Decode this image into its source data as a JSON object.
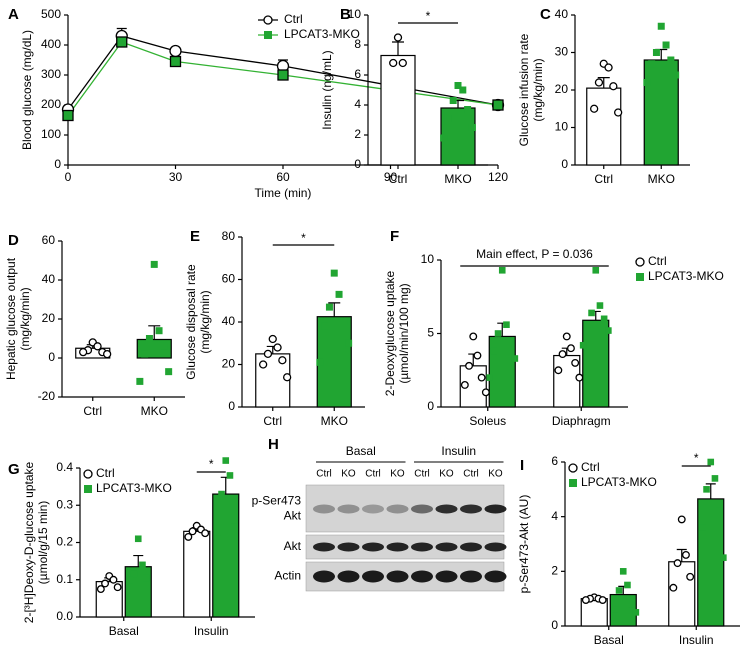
{
  "chart_data": [
    {
      "type": "line",
      "label": "A",
      "ylabel": "Blood glucose (mg/dL)",
      "xlabel": "Time (min)",
      "x": [
        0,
        15,
        30,
        60,
        120
      ],
      "xlim": [
        0,
        120
      ],
      "xticks": [
        0,
        30,
        60,
        90,
        120
      ],
      "ylim": [
        0,
        500
      ],
      "yticks": [
        0,
        100,
        200,
        300,
        400,
        500
      ],
      "legend": "upper right",
      "series": [
        {
          "name": "Ctrl",
          "color": "#000000",
          "fill": "#ffffff",
          "marker": "circle",
          "values": [
            185,
            430,
            380,
            330,
            200
          ],
          "errors": [
            10,
            25,
            10,
            20,
            8
          ]
        },
        {
          "name": "LPCAT3-MKO",
          "color": "#33b233",
          "fill": "#21a532",
          "marker": "square",
          "values": [
            165,
            410,
            345,
            300,
            200
          ],
          "errors": [
            10,
            15,
            10,
            15,
            8
          ]
        }
      ]
    },
    {
      "type": "bar",
      "label": "B",
      "ylabel": "Insulin (ng/mL)",
      "categories": [
        "Ctrl",
        "MKO"
      ],
      "values": [
        7.3,
        3.8
      ],
      "errors": [
        0.9,
        0.5
      ],
      "colors": [
        "#ffffff",
        "#21a532"
      ],
      "markers": [
        "circle",
        "square"
      ],
      "points": [
        [
          8.5,
          6.8,
          6.8
        ],
        [
          5.3,
          5.0,
          4.3,
          3.7,
          3.1,
          2.5,
          1.8
        ]
      ],
      "ylim": [
        0,
        10
      ],
      "yticks": [
        0,
        2,
        4,
        6,
        8,
        10
      ],
      "significance": "*"
    },
    {
      "type": "bar",
      "label": "C",
      "ylabel": [
        "Glucose infusion rate",
        "(mg/kg/min)"
      ],
      "categories": [
        "Ctrl",
        "MKO"
      ],
      "values": [
        20.5,
        28
      ],
      "errors": [
        2.8,
        2.8
      ],
      "colors": [
        "#ffffff",
        "#21a532"
      ],
      "markers": [
        "circle",
        "square"
      ],
      "points": [
        [
          27,
          26,
          22,
          21,
          15,
          14
        ],
        [
          37,
          32,
          30,
          28,
          27,
          24,
          22
        ]
      ],
      "ylim": [
        0,
        40
      ],
      "yticks": [
        0,
        10,
        20,
        30,
        40
      ]
    },
    {
      "type": "bar",
      "label": "D",
      "ylabel": [
        "Hepatic glucose output",
        "(mg/kg/min)"
      ],
      "categories": [
        "Ctrl",
        "MKO"
      ],
      "values": [
        5,
        9.5
      ],
      "errors": [
        1.8,
        7
      ],
      "colors": [
        "#ffffff",
        "#21a532"
      ],
      "markers": [
        "circle",
        "square"
      ],
      "points": [
        [
          8,
          6,
          4,
          3,
          3,
          2
        ],
        [
          48,
          14,
          10,
          6,
          2,
          -7,
          -12
        ]
      ],
      "ylim": [
        -20,
        60
      ],
      "yticks": [
        -20,
        0,
        20,
        40,
        60
      ]
    },
    {
      "type": "bar",
      "label": "E",
      "ylabel": [
        "Glucose disposal rate",
        "(mg/kg/min)"
      ],
      "categories": [
        "Ctrl",
        "MKO"
      ],
      "values": [
        25,
        42.5
      ],
      "errors": [
        3.5,
        6.5
      ],
      "colors": [
        "#ffffff",
        "#21a532"
      ],
      "markers": [
        "circle",
        "square"
      ],
      "points": [
        [
          32,
          28,
          25,
          22,
          20,
          14
        ],
        [
          63,
          53,
          47,
          40,
          38,
          30,
          21
        ]
      ],
      "ylim": [
        0,
        80
      ],
      "yticks": [
        0,
        20,
        40,
        60,
        80
      ],
      "significance": "*"
    },
    {
      "type": "grouped-bar",
      "label": "F",
      "ylabel": [
        "2-Deoxyglucose uptake",
        "(µmol/min/100 mg)"
      ],
      "categories": [
        "Soleus",
        "Diaphragm"
      ],
      "ylim": [
        0,
        10
      ],
      "yticks": [
        0,
        5,
        10
      ],
      "legend": "outside right",
      "annotation": "Main effect, P = 0.036",
      "series": [
        {
          "name": "Ctrl",
          "color": "#ffffff",
          "marker": "circle",
          "values": [
            2.8,
            3.5
          ],
          "errors": [
            0.8,
            0.5
          ],
          "points": [
            [
              4.8,
              3.5,
              2.8,
              2.0,
              1.5,
              1.0
            ],
            [
              4.8,
              4.0,
              3.6,
              3.0,
              2.5,
              2.0
            ]
          ]
        },
        {
          "name": "LPCAT3-MKO",
          "color": "#21a532",
          "marker": "square",
          "values": [
            4.8,
            5.9
          ],
          "errors": [
            0.9,
            0.6
          ],
          "points": [
            [
              9.3,
              5.6,
              5.0,
              4.5,
              3.8,
              3.3,
              2.0
            ],
            [
              9.3,
              6.9,
              6.4,
              6.0,
              5.6,
              5.2,
              4.2
            ]
          ]
        }
      ]
    },
    {
      "type": "grouped-bar",
      "label": "G",
      "ylabel": [
        "2-[³H]Deoxy-D-glucose uptake",
        "(µmol/g/15 min)"
      ],
      "categories": [
        "Basal",
        "Insulin"
      ],
      "ylim": [
        0,
        0.4
      ],
      "yticks": [
        {
          "value": 0,
          "label": "0.0"
        },
        0.1,
        0.2,
        0.3,
        0.4
      ],
      "legend": "upper left",
      "significance": [
        null,
        "*"
      ],
      "series": [
        {
          "name": "Ctrl",
          "color": "#ffffff",
          "marker": "circle",
          "values": [
            0.095,
            0.23
          ],
          "errors": [
            0.01,
            0.01
          ],
          "points": [
            [
              0.11,
              0.1,
              0.09,
              0.08,
              0.075
            ],
            [
              0.245,
              0.235,
              0.23,
              0.225,
              0.215
            ]
          ]
        },
        {
          "name": "LPCAT3-MKO",
          "color": "#21a532",
          "marker": "square",
          "values": [
            0.135,
            0.33
          ],
          "errors": [
            0.03,
            0.045
          ],
          "points": [
            [
              0.21,
              0.14,
              0.115,
              0.105,
              0.1
            ],
            [
              0.42,
              0.38,
              0.33,
              0.26,
              0.21
            ]
          ]
        }
      ]
    },
    {
      "type": "grouped-bar",
      "label": "I",
      "ylabel": "p-Ser473-Akt (AU)",
      "categories": [
        "Basal",
        "Insulin"
      ],
      "ylim": [
        0,
        6
      ],
      "yticks": [
        0,
        2,
        4,
        6
      ],
      "legend": "upper left",
      "significance": [
        null,
        "*"
      ],
      "series": [
        {
          "name": "Ctrl",
          "color": "#ffffff",
          "marker": "circle",
          "values": [
            1.0,
            2.35
          ],
          "errors": [
            0.05,
            0.45
          ],
          "points": [
            [
              1.05,
              1.0,
              1.0,
              0.95,
              0.95
            ],
            [
              3.9,
              2.6,
              2.3,
              1.8,
              1.4
            ]
          ]
        },
        {
          "name": "LPCAT3-MKO",
          "color": "#21a532",
          "marker": "square",
          "values": [
            1.15,
            4.65
          ],
          "errors": [
            0.3,
            0.55
          ],
          "points": [
            [
              2.0,
              1.5,
              1.3,
              0.8,
              0.6,
              0.5
            ],
            [
              6.0,
              5.4,
              5.0,
              4.2,
              3.6,
              2.5
            ]
          ]
        }
      ]
    }
  ],
  "blot": {
    "label": "H",
    "groups": [
      "Basal",
      "Insulin"
    ],
    "lanes": [
      "Ctrl",
      "KO",
      "Ctrl",
      "KO",
      "Ctrl",
      "KO",
      "Ctrl",
      "KO"
    ],
    "rows": [
      [
        "p-Ser473",
        "Akt"
      ],
      [
        "Akt"
      ],
      [
        "Actin"
      ]
    ]
  }
}
